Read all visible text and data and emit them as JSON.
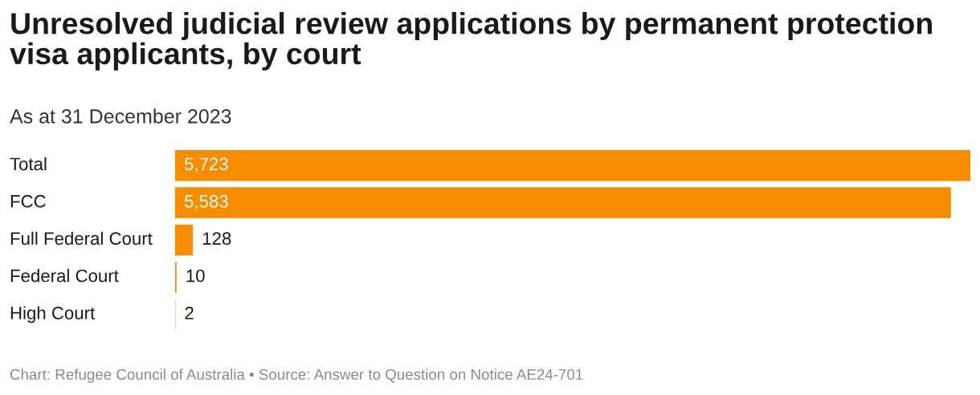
{
  "chart_data": {
    "type": "bar",
    "orientation": "horizontal",
    "title": "Unresolved judicial review applications by permanent protection visa applicants, by court",
    "subtitle": "As at 31 December 2023",
    "categories": [
      "Total",
      "FCC",
      "Full Federal Court",
      "Federal Court",
      "High Court"
    ],
    "values": [
      5723,
      5583,
      128,
      10,
      2
    ],
    "color": "#f78c00",
    "value_labels": [
      "5,723",
      "5,583",
      "128",
      "10",
      "2"
    ],
    "annotations": [
      "Chart: Refugee Council of Australia • Source: Answer to Question on Notice AE24-701"
    ]
  }
}
